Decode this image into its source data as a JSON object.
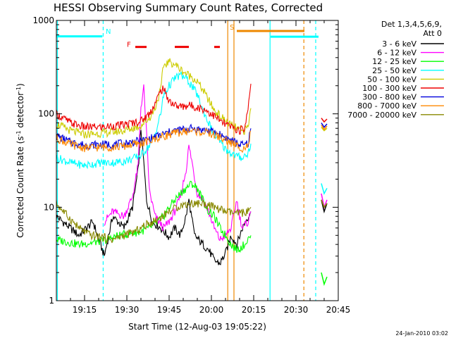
{
  "chart_data": {
    "type": "line",
    "title": "HESSI Observing Summary Count Rates, Corrected",
    "xlabel": "Start Time (12-Aug-03 19:05:22)",
    "ylabel": "Corrected Count Rate (s⁻¹ detector⁻¹)",
    "ylabel_parts": [
      "Corrected Count Rate (s",
      "-1",
      " detector",
      "-1",
      ")"
    ],
    "yscale": "log",
    "xlim_minutes": [
      0,
      100
    ],
    "ylim": [
      1,
      1000
    ],
    "xticks": [
      {
        "m": 10,
        "label": "19:15"
      },
      {
        "m": 25,
        "label": "19:30"
      },
      {
        "m": 40,
        "label": "19:45"
      },
      {
        "m": 55,
        "label": "20:00"
      },
      {
        "m": 70,
        "label": "20:15"
      },
      {
        "m": 85,
        "label": "20:30"
      },
      {
        "m": 100,
        "label": "20:45"
      }
    ],
    "yticks": [
      {
        "v": 1,
        "label": "1"
      },
      {
        "v": 10,
        "label": "10"
      },
      {
        "v": 100,
        "label": "100"
      },
      {
        "v": 1000,
        "label": "1000"
      }
    ],
    "legend_header": [
      "Det 1,3,4,5,6,9,",
      "Att 0"
    ],
    "legend_placement": "right",
    "series": [
      {
        "name": "3 - 6 keV",
        "color": "#000000",
        "points": [
          [
            0,
            8
          ],
          [
            8,
            5
          ],
          [
            13,
            7
          ],
          [
            17,
            3
          ],
          [
            20,
            8
          ],
          [
            24,
            6
          ],
          [
            27,
            10
          ],
          [
            29,
            25
          ],
          [
            30,
            70
          ],
          [
            31,
            30
          ],
          [
            32,
            12
          ],
          [
            34,
            7
          ],
          [
            37,
            6
          ],
          [
            40,
            4.8
          ],
          [
            42,
            6
          ],
          [
            44,
            5
          ],
          [
            46,
            8
          ],
          [
            47,
            12
          ],
          [
            49,
            5
          ],
          [
            52,
            4
          ],
          [
            54,
            3.5
          ],
          [
            56,
            2.7
          ],
          [
            58,
            2.5
          ],
          [
            60,
            3.2
          ],
          [
            62,
            5
          ],
          [
            64,
            4
          ],
          [
            66,
            6
          ],
          [
            67,
            7
          ],
          [
            69,
            9
          ]
        ],
        "extra": [
          [
            94,
            12
          ],
          [
            95,
            9
          ],
          [
            96,
            11
          ]
        ]
      },
      {
        "name": "6 - 12 keV",
        "color": "#ff00ff",
        "points": [
          [
            17,
            7
          ],
          [
            20,
            9
          ],
          [
            24,
            8
          ],
          [
            27,
            13
          ],
          [
            29,
            28
          ],
          [
            30,
            120
          ],
          [
            31,
            190
          ],
          [
            32,
            60
          ],
          [
            33,
            15
          ],
          [
            35,
            8
          ],
          [
            38,
            6
          ],
          [
            40,
            7
          ],
          [
            42,
            9
          ],
          [
            44,
            13
          ],
          [
            46,
            25
          ],
          [
            47,
            45
          ],
          [
            48,
            32
          ],
          [
            50,
            14
          ],
          [
            52,
            12
          ],
          [
            54,
            9
          ],
          [
            56,
            6
          ],
          [
            58,
            4.5
          ],
          [
            60,
            5
          ],
          [
            62,
            6
          ],
          [
            64,
            12
          ],
          [
            65,
            8
          ],
          [
            66,
            6
          ],
          [
            68,
            7
          ],
          [
            69,
            9
          ]
        ],
        "extra": [
          [
            94,
            14
          ],
          [
            95,
            10
          ],
          [
            96,
            12
          ]
        ]
      },
      {
        "name": "12 - 25 keV",
        "color": "#00ff00",
        "points": [
          [
            0,
            4.5
          ],
          [
            8,
            4
          ],
          [
            13,
            4.2
          ],
          [
            18,
            4.5
          ],
          [
            22,
            5
          ],
          [
            26,
            5.2
          ],
          [
            30,
            5.5
          ],
          [
            33,
            6
          ],
          [
            36,
            7
          ],
          [
            38,
            8
          ],
          [
            40,
            10
          ],
          [
            42,
            12
          ],
          [
            44,
            14
          ],
          [
            46,
            16
          ],
          [
            48,
            18
          ],
          [
            50,
            16
          ],
          [
            52,
            12
          ],
          [
            54,
            9
          ],
          [
            56,
            8
          ],
          [
            58,
            6
          ],
          [
            60,
            5
          ],
          [
            62,
            4
          ],
          [
            64,
            3.5
          ],
          [
            66,
            3.8
          ],
          [
            68,
            4.5
          ],
          [
            69,
            5
          ]
        ],
        "extra": [
          [
            94,
            2
          ],
          [
            95,
            1.5
          ],
          [
            96,
            1.8
          ]
        ]
      },
      {
        "name": "25 - 50 keV",
        "color": "#00ffff",
        "points": [
          [
            0,
            34
          ],
          [
            5,
            30
          ],
          [
            10,
            28
          ],
          [
            16,
            30
          ],
          [
            20,
            30
          ],
          [
            24,
            31
          ],
          [
            27,
            33
          ],
          [
            30,
            36
          ],
          [
            33,
            46
          ],
          [
            35,
            60
          ],
          [
            37,
            100
          ],
          [
            38,
            155
          ],
          [
            40,
            200
          ],
          [
            42,
            240
          ],
          [
            44,
            260
          ],
          [
            46,
            240
          ],
          [
            48,
            200
          ],
          [
            50,
            160
          ],
          [
            52,
            110
          ],
          [
            54,
            80
          ],
          [
            56,
            60
          ],
          [
            58,
            50
          ],
          [
            60,
            42
          ],
          [
            62,
            38
          ],
          [
            64,
            35
          ],
          [
            66,
            34
          ],
          [
            68,
            38
          ],
          [
            69,
            48
          ]
        ],
        "extra": [
          [
            94,
            18
          ],
          [
            95,
            14
          ],
          [
            96,
            16
          ]
        ]
      },
      {
        "name": "50 - 100 keV",
        "color": "#cccc00",
        "points": [
          [
            0,
            78
          ],
          [
            5,
            66
          ],
          [
            10,
            60
          ],
          [
            16,
            62
          ],
          [
            20,
            64
          ],
          [
            24,
            66
          ],
          [
            27,
            70
          ],
          [
            30,
            75
          ],
          [
            33,
            90
          ],
          [
            35,
            115
          ],
          [
            37,
            180
          ],
          [
            38,
            330
          ],
          [
            40,
            360
          ],
          [
            42,
            340
          ],
          [
            44,
            300
          ],
          [
            46,
            270
          ],
          [
            48,
            250
          ],
          [
            50,
            220
          ],
          [
            52,
            180
          ],
          [
            54,
            140
          ],
          [
            56,
            110
          ],
          [
            58,
            95
          ],
          [
            60,
            85
          ],
          [
            62,
            75
          ],
          [
            64,
            70
          ],
          [
            66,
            64
          ],
          [
            68,
            72
          ],
          [
            69,
            115
          ]
        ],
        "extra": [
          [
            94,
            72
          ],
          [
            95,
            66
          ],
          [
            96,
            70
          ]
        ]
      },
      {
        "name": "100 - 300 keV",
        "color": "#ee0000",
        "points": [
          [
            0,
            100
          ],
          [
            5,
            80
          ],
          [
            10,
            72
          ],
          [
            16,
            72
          ],
          [
            20,
            74
          ],
          [
            24,
            76
          ],
          [
            27,
            80
          ],
          [
            30,
            84
          ],
          [
            33,
            100
          ],
          [
            35,
            130
          ],
          [
            37,
            175
          ],
          [
            38,
            190
          ],
          [
            39,
            155
          ],
          [
            41,
            130
          ],
          [
            43,
            120
          ],
          [
            45,
            120
          ],
          [
            47,
            124
          ],
          [
            49,
            120
          ],
          [
            51,
            115
          ],
          [
            53,
            110
          ],
          [
            55,
            100
          ],
          [
            57,
            90
          ],
          [
            59,
            80
          ],
          [
            61,
            75
          ],
          [
            63,
            70
          ],
          [
            65,
            66
          ],
          [
            67,
            72
          ],
          [
            68,
            120
          ],
          [
            69,
            210
          ]
        ],
        "extra": [
          [
            94,
            90
          ],
          [
            95,
            82
          ],
          [
            96,
            88
          ]
        ]
      },
      {
        "name": "300 - 800 keV",
        "color": "#0000dd",
        "points": [
          [
            0,
            58
          ],
          [
            5,
            50
          ],
          [
            10,
            46
          ],
          [
            16,
            47
          ],
          [
            20,
            47
          ],
          [
            24,
            48
          ],
          [
            27,
            50
          ],
          [
            30,
            51
          ],
          [
            33,
            54
          ],
          [
            36,
            58
          ],
          [
            39,
            62
          ],
          [
            42,
            66
          ],
          [
            45,
            68
          ],
          [
            48,
            70
          ],
          [
            51,
            68
          ],
          [
            54,
            66
          ],
          [
            57,
            62
          ],
          [
            60,
            56
          ],
          [
            63,
            50
          ],
          [
            66,
            46
          ],
          [
            68,
            48
          ],
          [
            69,
            70
          ]
        ],
        "extra": [
          [
            94,
            80
          ],
          [
            95,
            72
          ],
          [
            96,
            78
          ]
        ]
      },
      {
        "name": "800 - 7000 keV",
        "color": "#ff8800",
        "points": [
          [
            0,
            55
          ],
          [
            5,
            47
          ],
          [
            10,
            43
          ],
          [
            16,
            44
          ],
          [
            20,
            44
          ],
          [
            24,
            45
          ],
          [
            27,
            47
          ],
          [
            30,
            48
          ],
          [
            33,
            51
          ],
          [
            36,
            55
          ],
          [
            39,
            59
          ],
          [
            42,
            62
          ],
          [
            45,
            64
          ],
          [
            48,
            66
          ],
          [
            51,
            64
          ],
          [
            54,
            62
          ],
          [
            57,
            58
          ],
          [
            60,
            52
          ],
          [
            63,
            47
          ],
          [
            66,
            43
          ],
          [
            68,
            45
          ],
          [
            69,
            65
          ]
        ],
        "extra": [
          [
            94,
            76
          ],
          [
            95,
            68
          ],
          [
            96,
            74
          ]
        ]
      },
      {
        "name": "7000 - 20000 keV",
        "color": "#888800",
        "points": [
          [
            0,
            11
          ],
          [
            4,
            8
          ],
          [
            8,
            6
          ],
          [
            12,
            5
          ],
          [
            16,
            4.8
          ],
          [
            20,
            4.5
          ],
          [
            24,
            5
          ],
          [
            28,
            5.5
          ],
          [
            32,
            6.5
          ],
          [
            36,
            7.5
          ],
          [
            40,
            9
          ],
          [
            44,
            10.5
          ],
          [
            48,
            11
          ],
          [
            52,
            11
          ],
          [
            56,
            10
          ],
          [
            60,
            9
          ],
          [
            64,
            8.5
          ],
          [
            68,
            9
          ],
          [
            69,
            10
          ]
        ],
        "extra": [
          [
            94,
            12
          ],
          [
            95,
            10
          ],
          [
            96,
            11
          ]
        ]
      }
    ],
    "vertical_lines": [
      {
        "m": 16.6,
        "color": "#00ffff",
        "style": "dashed"
      },
      {
        "m": 60.8,
        "color": "#ee8800",
        "style": "solid"
      },
      {
        "m": 63,
        "color": "#ee8800",
        "style": "solid"
      },
      {
        "m": 75.8,
        "color": "#00ffff",
        "style": "solid"
      },
      {
        "m": 87.8,
        "color": "#ee8800",
        "style": "dashed"
      },
      {
        "m": 92,
        "color": "#00ffff",
        "style": "dashed"
      }
    ],
    "bars": [
      {
        "from": 0,
        "to": 16.3,
        "v": 675,
        "color": "#00ffff"
      },
      {
        "from": 64,
        "to": 88,
        "v": 770,
        "color": "#ee8800"
      },
      {
        "from": 76,
        "to": 93,
        "v": 670,
        "color": "#00ffff"
      },
      {
        "from": 28,
        "to": 32,
        "v": 520,
        "color": "#ee0000"
      },
      {
        "from": 42,
        "to": 47,
        "v": 520,
        "color": "#ee0000"
      },
      {
        "from": 56,
        "to": 58,
        "v": 520,
        "color": "#ee0000"
      }
    ],
    "annotations": [
      {
        "text": "N",
        "m": 17.5,
        "v": 720,
        "color": "#00ffff"
      },
      {
        "text": "F",
        "m": 25,
        "v": 520,
        "color": "#ee0000"
      },
      {
        "text": "S",
        "m": 61.5,
        "v": 800,
        "color": "#ee8800"
      }
    ],
    "timestamp": "24-Jan-2010 03:02"
  }
}
